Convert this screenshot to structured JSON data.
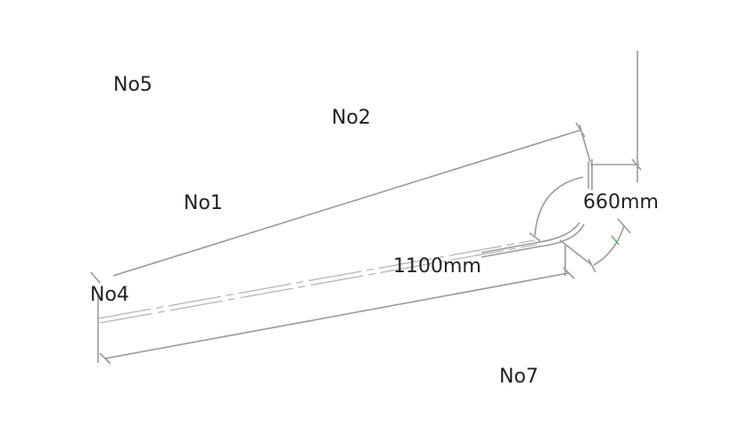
{
  "labels": {
    "no5": "No5",
    "no2": "No2",
    "no1": "No1",
    "no4": "No4",
    "no7": "No7"
  },
  "dimensions": {
    "length": "1100mm",
    "offset": "660mm"
  },
  "colors": {
    "line": "#9a9a9a",
    "text": "#222222",
    "accent": "#4caf50"
  }
}
